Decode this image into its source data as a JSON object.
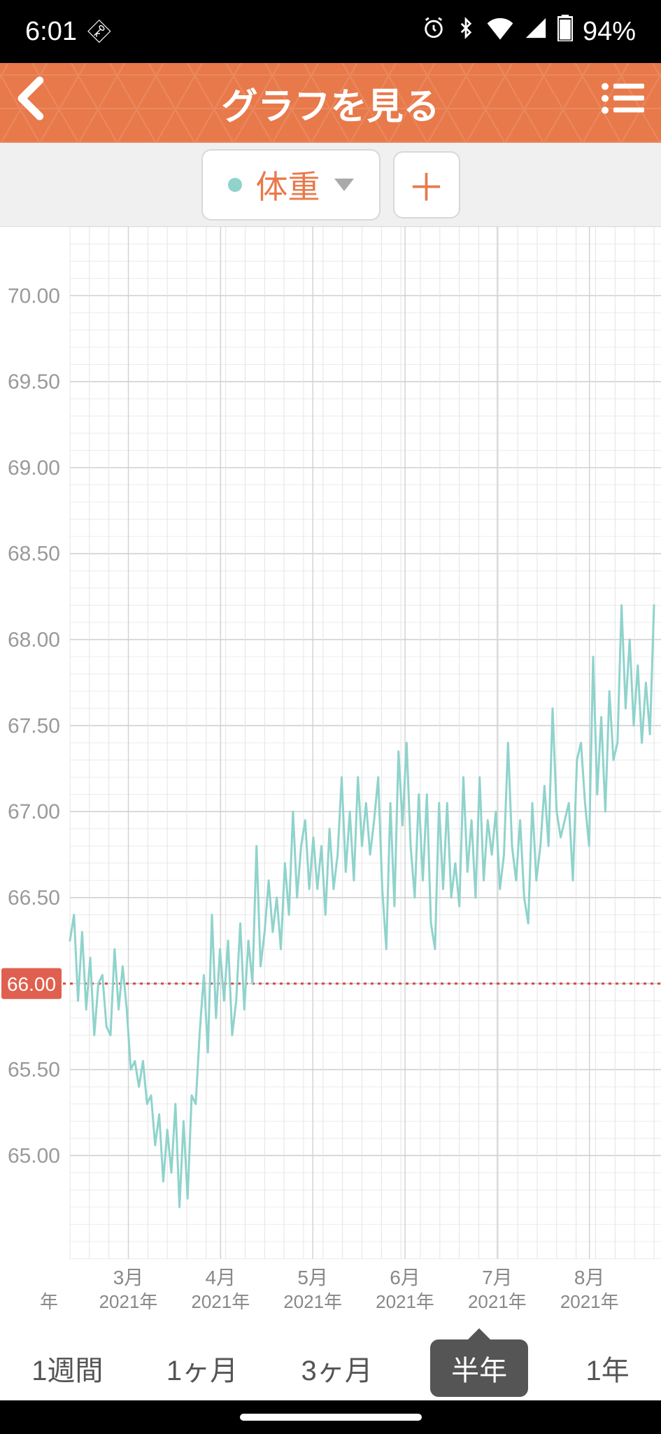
{
  "status": {
    "time": "6:01",
    "battery": "94%"
  },
  "header": {
    "title": "グラフを見る"
  },
  "selector": {
    "metric_label": "体重",
    "dot_color": "#8fd3cc"
  },
  "chart": {
    "type": "line",
    "line_color": "#8fd3cc",
    "line_width": 3,
    "background_color": "#ffffff",
    "grid_color_major": "#d0d0d0",
    "grid_color_minor": "#ececec",
    "grid_color_vertical": "#e4e4e4",
    "reference_line": {
      "value": 66.0,
      "color": "#d64545",
      "badge_bg": "#e0604f",
      "label": "66.00"
    },
    "ylim": [
      64.4,
      70.4
    ],
    "ytick_step_major": 0.5,
    "ytick_step_minor": 0.1,
    "yticks": [
      "70.00",
      "69.50",
      "69.00",
      "68.50",
      "68.00",
      "67.50",
      "67.00",
      "66.50",
      "66.00",
      "65.50",
      "65.00"
    ],
    "x_axis": {
      "ticks": [
        {
          "month": "3月",
          "year": "2021年"
        },
        {
          "month": "4月",
          "year": "2021年"
        },
        {
          "month": "5月",
          "year": "2021年"
        },
        {
          "month": "6月",
          "year": "2021年"
        },
        {
          "month": "7月",
          "year": "2021年"
        },
        {
          "month": "8月",
          "year": "2021年"
        }
      ],
      "left_partial": "年"
    },
    "series": [
      66.25,
      66.4,
      65.9,
      66.3,
      65.85,
      66.15,
      65.7,
      66.0,
      66.05,
      65.75,
      65.7,
      66.2,
      65.85,
      66.1,
      65.85,
      65.5,
      65.55,
      65.4,
      65.55,
      65.3,
      65.35,
      65.06,
      65.24,
      64.85,
      65.15,
      64.9,
      65.3,
      64.7,
      65.2,
      64.75,
      65.35,
      65.3,
      65.72,
      66.05,
      65.6,
      66.4,
      65.8,
      66.2,
      65.9,
      66.25,
      65.7,
      65.9,
      66.35,
      65.85,
      66.25,
      66.0,
      66.8,
      66.1,
      66.3,
      66.6,
      66.3,
      66.5,
      66.2,
      66.7,
      66.4,
      67.0,
      66.5,
      66.8,
      66.95,
      66.55,
      66.85,
      66.55,
      66.8,
      66.4,
      66.9,
      66.55,
      66.75,
      67.2,
      66.65,
      67.0,
      66.6,
      67.2,
      66.8,
      67.05,
      66.75,
      66.95,
      67.2,
      66.55,
      66.2,
      67.05,
      66.45,
      67.35,
      66.92,
      67.4,
      66.8,
      66.5,
      67.1,
      66.6,
      67.1,
      66.35,
      66.2,
      67.05,
      66.55,
      67.05,
      66.5,
      66.7,
      66.45,
      67.2,
      66.65,
      66.95,
      66.5,
      67.2,
      66.6,
      66.95,
      66.75,
      67.0,
      66.55,
      66.75,
      67.4,
      66.8,
      66.6,
      66.95,
      66.5,
      66.35,
      67.05,
      66.6,
      66.8,
      67.15,
      66.8,
      67.6,
      67.0,
      66.85,
      66.95,
      67.05,
      66.6,
      67.3,
      67.4,
      67.05,
      66.8,
      67.9,
      67.1,
      67.55,
      67.0,
      67.7,
      67.3,
      67.4,
      68.2,
      67.6,
      68.0,
      67.5,
      67.85,
      67.4,
      67.75,
      67.45,
      68.2
    ]
  },
  "periods": {
    "items": [
      "1週間",
      "1ヶ月",
      "3ヶ月",
      "半年",
      "1年"
    ],
    "active_index": 3
  }
}
